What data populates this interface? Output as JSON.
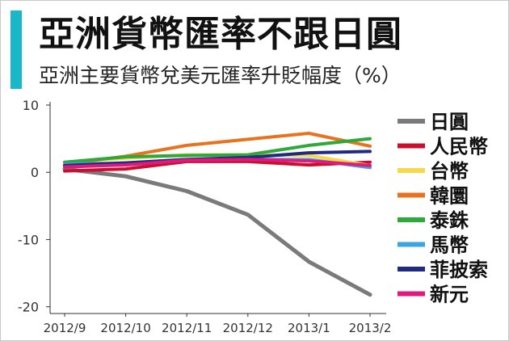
{
  "header": {
    "title": "亞洲貨幣匯率不跟日圓",
    "subtitle": "亞洲主要貨幣兌美元匯率升貶幅度（%）"
  },
  "colors": {
    "accent": "#18b8c8",
    "axis": "#333333",
    "grid": "#e6e6e6"
  },
  "chart_data": {
    "type": "line",
    "title": "亞洲貨幣匯率不跟日圓",
    "subtitle": "亞洲主要貨幣兌美元匯率升貶幅度（%）",
    "xlabel": "",
    "ylabel": "",
    "categories": [
      "2012/9",
      "2012/10",
      "2012/11",
      "2012/12",
      "2013/1",
      "2013/2"
    ],
    "yticks": [
      10,
      0,
      -10,
      -20
    ],
    "ylim": [
      -21,
      10
    ],
    "grid": false,
    "legend_position": "right",
    "series": [
      {
        "name": "日圓",
        "color": "#7a7a7a",
        "width": 5,
        "values": [
          0.5,
          -0.6,
          -2.8,
          -6.3,
          -13.3,
          -18.2
        ]
      },
      {
        "name": "人民幣",
        "color": "#c8102e",
        "width": 4,
        "values": [
          0.2,
          0.5,
          1.6,
          1.6,
          1.1,
          1.5
        ]
      },
      {
        "name": "台幣",
        "color": "#f5d94a",
        "width": 4,
        "values": [
          1.5,
          2.1,
          2.6,
          2.6,
          2.5,
          1.0
        ]
      },
      {
        "name": "韓圜",
        "color": "#e8731e",
        "width": 4,
        "values": [
          1.2,
          2.4,
          4.0,
          4.9,
          5.8,
          3.9
        ]
      },
      {
        "name": "泰銖",
        "color": "#2fa83a",
        "width": 4,
        "values": [
          1.5,
          2.3,
          2.5,
          2.6,
          4.0,
          5.0
        ]
      },
      {
        "name": "馬幣",
        "color": "#3aa5e0",
        "width": 4,
        "values": [
          1.2,
          1.4,
          1.9,
          1.9,
          1.9,
          0.7
        ]
      },
      {
        "name": "菲披索",
        "color": "#1f2a80",
        "width": 4,
        "values": [
          1.0,
          1.4,
          1.9,
          2.2,
          2.9,
          3.1
        ]
      },
      {
        "name": "新元",
        "color": "#e0197d",
        "width": 4,
        "values": [
          0.8,
          1.1,
          1.8,
          1.9,
          1.7,
          1.0
        ]
      }
    ]
  }
}
